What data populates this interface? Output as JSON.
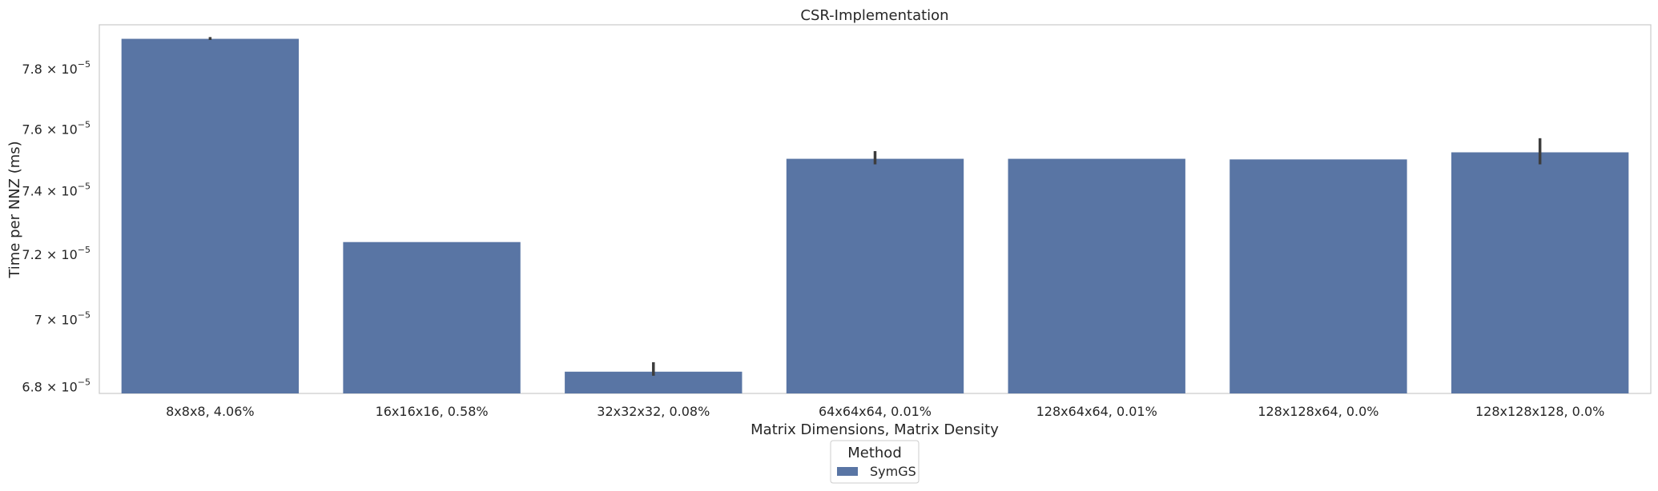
{
  "chart_data": {
    "type": "bar",
    "title": "CSR-Implementation",
    "xlabel": "Matrix Dimensions, Matrix Density",
    "ylabel": "Time per NNZ (ms)",
    "yscale": "log",
    "ylim": [
      6.78e-05,
      7.95e-05
    ],
    "grid": false,
    "legend": {
      "title": "Method",
      "placement": "bottom-center"
    },
    "categories": [
      "8x8x8, 4.06%",
      "16x16x16, 0.58%",
      "32x32x32, 0.08%",
      "64x64x64, 0.01%",
      "128x64x64, 0.01%",
      "128x128x64, 0.0%",
      "128x128x128, 0.0%"
    ],
    "yticks": [
      {
        "value": 6.8e-05,
        "mantissa": "6.8",
        "exp": "−5"
      },
      {
        "value": 7e-05,
        "mantissa": "7",
        "exp": "−5"
      },
      {
        "value": 7.2e-05,
        "mantissa": "7.2",
        "exp": "−5"
      },
      {
        "value": 7.4e-05,
        "mantissa": "7.4",
        "exp": "−5"
      },
      {
        "value": 7.6e-05,
        "mantissa": "7.6",
        "exp": "−5"
      },
      {
        "value": 7.8e-05,
        "mantissa": "7.8",
        "exp": "−5"
      }
    ],
    "series": [
      {
        "name": "SymGS",
        "color": "#5975a4",
        "values": [
          7.902e-05,
          7.238e-05,
          6.844e-05,
          7.503e-05,
          7.503e-05,
          7.501e-05,
          7.524e-05
        ],
        "error_low": [
          7.898e-05,
          7.238e-05,
          6.832e-05,
          7.485e-05,
          7.503e-05,
          7.501e-05,
          7.485e-05
        ],
        "error_high": [
          7.908e-05,
          7.238e-05,
          6.872e-05,
          7.528e-05,
          7.503e-05,
          7.501e-05,
          7.57e-05
        ]
      }
    ]
  }
}
